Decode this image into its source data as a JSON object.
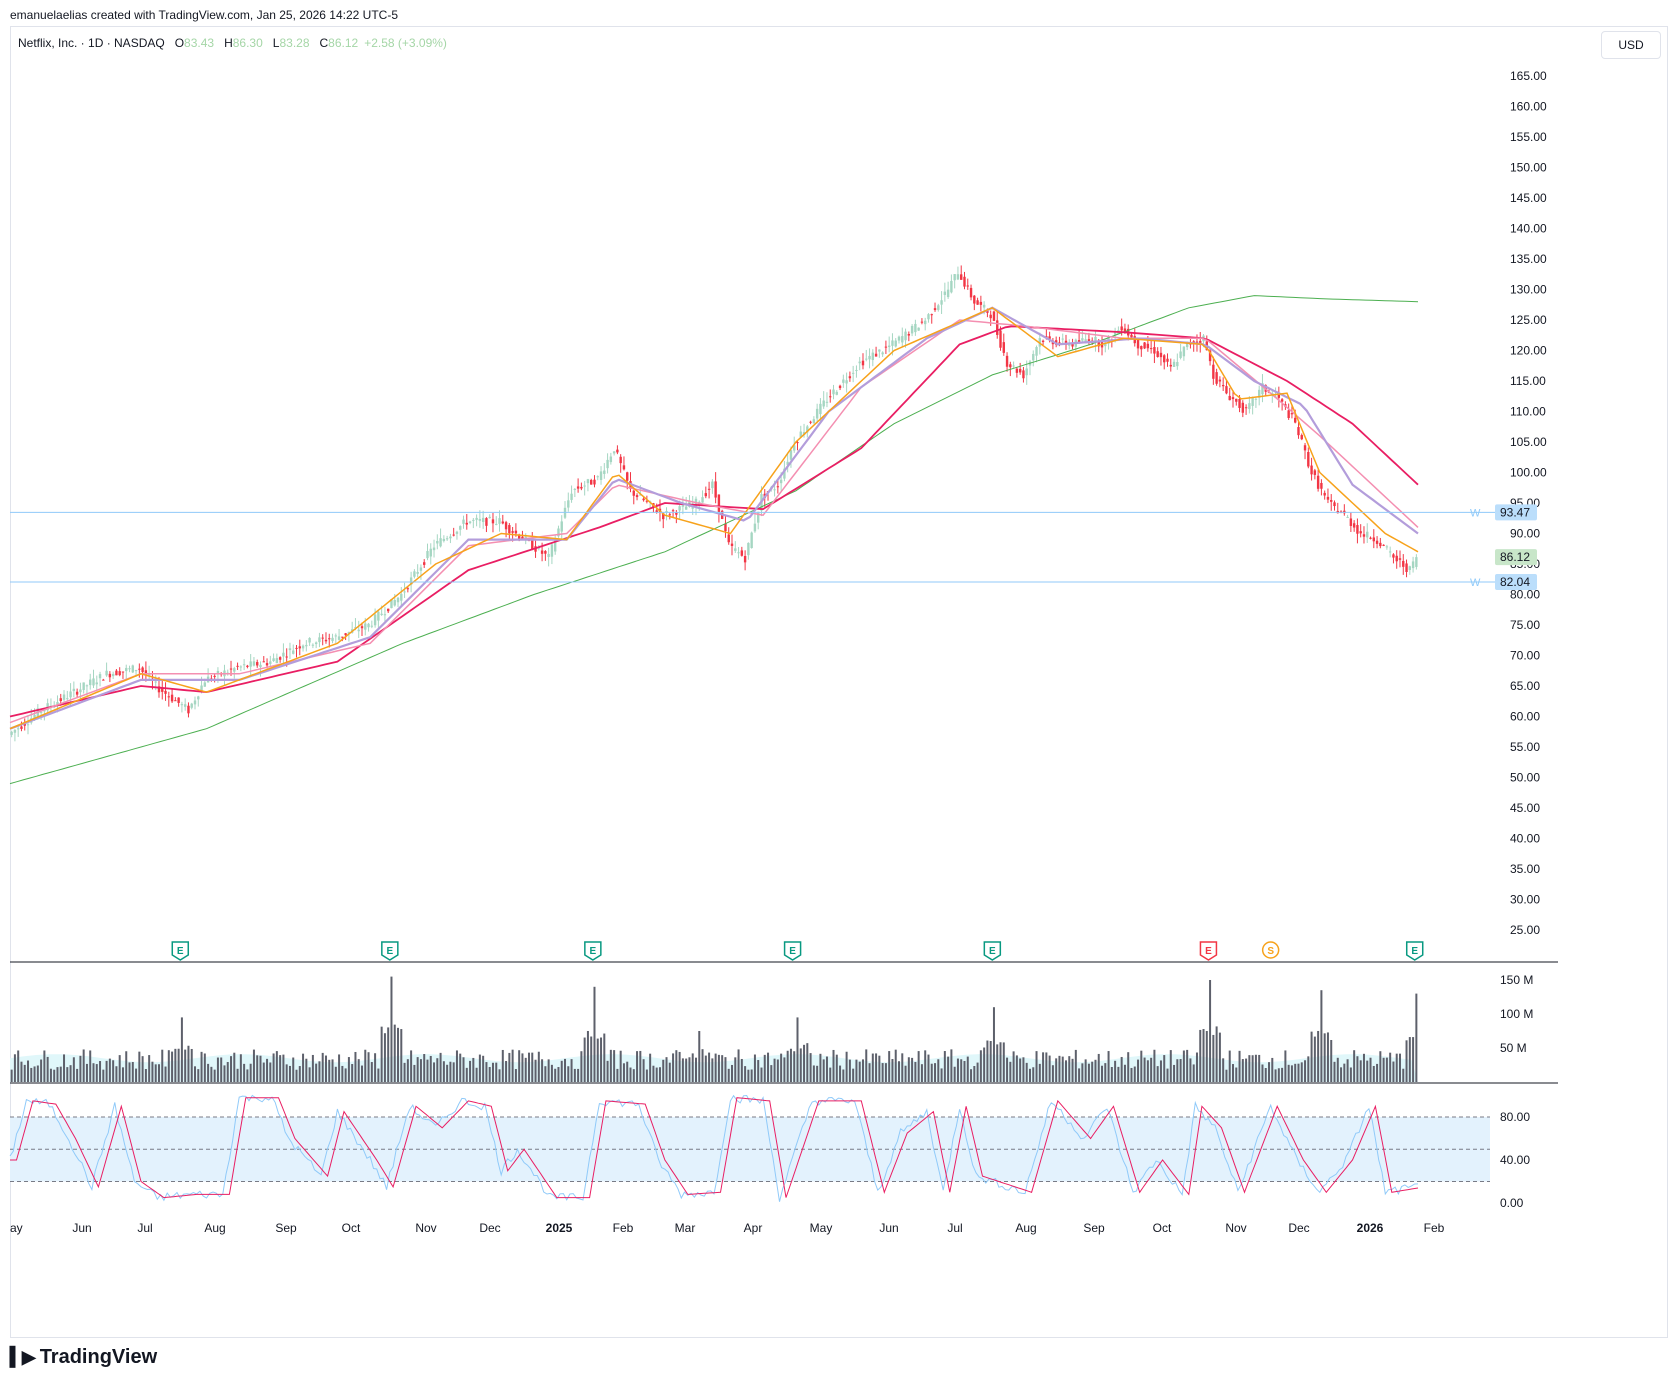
{
  "credit": "emanuelaelias created with TradingView.com, Jan 25, 2026 14:22 UTC-5",
  "legend": {
    "symbol": "Netflix, Inc. · 1D · NASDAQ",
    "open_label": "O",
    "open": "83.43",
    "high_label": "H",
    "high": "86.30",
    "low_label": "L",
    "low": "83.28",
    "close_label": "C",
    "close": "86.12",
    "change": "+2.58 (+3.09%)"
  },
  "currency": "USD",
  "brand": "TradingView",
  "colors": {
    "up": "#a5d6c2",
    "down": "#f23645",
    "ema_orange": "#f7a21b",
    "ema_purple": "#b39ddb",
    "ema_pink": "#f48fb1",
    "ema_red": "#e91e63",
    "sma200": "#4caf50",
    "hline": "#90caf9",
    "grid": "#ffffff",
    "stoch_k": "#90caf9",
    "stoch_d": "#e91e63",
    "band": "#e3f2fd"
  },
  "chart_data": [
    {
      "type": "candlestick",
      "price_axis": {
        "min": 25,
        "max": 165,
        "step": 5,
        "ticks": [
          "165.00",
          "160.00",
          "155.00",
          "150.00",
          "145.00",
          "140.00",
          "135.00",
          "130.00",
          "125.00",
          "120.00",
          "115.00",
          "110.00",
          "105.00",
          "100.00",
          "95.00",
          "90.00",
          "85.00",
          "80.00",
          "75.00",
          "70.00",
          "65.00",
          "60.00",
          "55.00",
          "50.00",
          "45.00",
          "40.00",
          "35.00",
          "30.00",
          "25.00"
        ]
      },
      "time_axis": [
        "ay",
        "Jun",
        "Jul",
        "Aug",
        "Sep",
        "Oct",
        "Nov",
        "Dec",
        "2025",
        "Feb",
        "Mar",
        "Apr",
        "May",
        "Jun",
        "Jul",
        "Aug",
        "Sep",
        "Oct",
        "Nov",
        "Dec",
        "2026",
        "Feb"
      ],
      "price_path": [
        [
          0,
          57
        ],
        [
          10,
          61
        ],
        [
          20,
          64
        ],
        [
          30,
          67
        ],
        [
          40,
          68
        ],
        [
          45,
          65
        ],
        [
          50,
          63
        ],
        [
          55,
          61
        ],
        [
          60,
          66
        ],
        [
          70,
          68
        ],
        [
          80,
          69
        ],
        [
          90,
          72
        ],
        [
          100,
          73
        ],
        [
          110,
          75
        ],
        [
          120,
          80
        ],
        [
          130,
          88
        ],
        [
          140,
          92
        ],
        [
          150,
          92
        ],
        [
          160,
          88
        ],
        [
          165,
          86
        ],
        [
          172,
          97
        ],
        [
          180,
          99
        ],
        [
          185,
          104
        ],
        [
          190,
          97
        ],
        [
          200,
          93
        ],
        [
          210,
          95
        ],
        [
          215,
          98
        ],
        [
          220,
          88
        ],
        [
          225,
          86
        ],
        [
          230,
          96
        ],
        [
          235,
          98
        ],
        [
          240,
          105
        ],
        [
          250,
          112
        ],
        [
          260,
          118
        ],
        [
          270,
          121
        ],
        [
          280,
          125
        ],
        [
          287,
          130
        ],
        [
          290,
          133
        ],
        [
          295,
          128
        ],
        [
          300,
          126
        ],
        [
          305,
          118
        ],
        [
          310,
          116
        ],
        [
          315,
          122
        ],
        [
          325,
          121
        ],
        [
          330,
          122
        ],
        [
          335,
          121
        ],
        [
          340,
          124
        ],
        [
          345,
          121
        ],
        [
          350,
          120
        ],
        [
          355,
          117
        ],
        [
          360,
          121
        ],
        [
          365,
          122
        ],
        [
          368,
          116
        ],
        [
          372,
          113
        ],
        [
          378,
          110
        ],
        [
          383,
          114
        ],
        [
          388,
          112
        ],
        [
          393,
          108
        ],
        [
          398,
          100
        ],
        [
          403,
          95
        ],
        [
          408,
          93
        ],
        [
          413,
          90
        ],
        [
          418,
          89
        ],
        [
          423,
          86
        ],
        [
          428,
          84
        ],
        [
          430,
          86.12
        ]
      ],
      "sma200_path": [
        [
          0,
          49
        ],
        [
          60,
          58
        ],
        [
          120,
          72
        ],
        [
          160,
          80
        ],
        [
          200,
          87
        ],
        [
          240,
          97
        ],
        [
          270,
          108
        ],
        [
          300,
          116
        ],
        [
          330,
          121
        ],
        [
          360,
          127
        ],
        [
          380,
          129
        ],
        [
          400,
          128.5
        ],
        [
          430,
          128
        ]
      ],
      "ema_fast_path": [
        [
          0,
          58
        ],
        [
          40,
          67
        ],
        [
          60,
          64
        ],
        [
          100,
          72
        ],
        [
          130,
          85
        ],
        [
          150,
          90
        ],
        [
          170,
          89
        ],
        [
          185,
          100
        ],
        [
          200,
          93
        ],
        [
          220,
          90
        ],
        [
          240,
          105
        ],
        [
          270,
          120
        ],
        [
          300,
          127
        ],
        [
          320,
          119
        ],
        [
          340,
          122
        ],
        [
          365,
          121
        ],
        [
          375,
          112
        ],
        [
          390,
          113
        ],
        [
          400,
          100
        ],
        [
          420,
          90
        ],
        [
          430,
          87
        ]
      ],
      "ema_mid_path": [
        [
          0,
          58
        ],
        [
          40,
          66
        ],
        [
          70,
          66
        ],
        [
          110,
          73
        ],
        [
          140,
          89
        ],
        [
          170,
          89
        ],
        [
          185,
          99
        ],
        [
          205,
          95
        ],
        [
          225,
          92
        ],
        [
          250,
          110
        ],
        [
          280,
          122
        ],
        [
          300,
          127
        ],
        [
          320,
          121
        ],
        [
          345,
          122
        ],
        [
          365,
          121
        ],
        [
          380,
          115
        ],
        [
          395,
          111
        ],
        [
          410,
          98
        ],
        [
          430,
          90
        ]
      ],
      "ema_slow_path": [
        [
          0,
          59
        ],
        [
          40,
          67
        ],
        [
          70,
          67
        ],
        [
          110,
          72
        ],
        [
          140,
          88
        ],
        [
          170,
          90
        ],
        [
          185,
          98
        ],
        [
          210,
          95
        ],
        [
          230,
          93
        ],
        [
          260,
          114
        ],
        [
          290,
          125
        ],
        [
          310,
          124
        ],
        [
          340,
          122
        ],
        [
          365,
          122
        ],
        [
          385,
          113
        ],
        [
          400,
          106
        ],
        [
          430,
          91
        ]
      ],
      "sma50_path": [
        [
          0,
          60
        ],
        [
          40,
          65
        ],
        [
          60,
          64
        ],
        [
          100,
          69
        ],
        [
          140,
          84
        ],
        [
          180,
          91
        ],
        [
          200,
          95
        ],
        [
          230,
          94
        ],
        [
          260,
          104
        ],
        [
          290,
          121
        ],
        [
          305,
          124
        ],
        [
          340,
          123
        ],
        [
          365,
          122
        ],
        [
          390,
          115
        ],
        [
          410,
          108
        ],
        [
          430,
          98
        ]
      ],
      "hlines": [
        {
          "value": 93.47,
          "label": "93.47",
          "tag": "W"
        },
        {
          "value": 82.04,
          "label": "82.04",
          "tag": "W"
        }
      ],
      "last_price": {
        "value": 86.12,
        "label": "86.12"
      },
      "earnings_markers": [
        {
          "x": 52,
          "label": "E",
          "color": "#089981"
        },
        {
          "x": 116,
          "label": "E",
          "color": "#089981"
        },
        {
          "x": 178,
          "label": "E",
          "color": "#089981"
        },
        {
          "x": 239,
          "label": "E",
          "color": "#089981"
        },
        {
          "x": 300,
          "label": "E",
          "color": "#089981"
        },
        {
          "x": 366,
          "label": "E",
          "color": "#f23645"
        },
        {
          "x": 385,
          "label": "S",
          "color": "#f7a21b"
        },
        {
          "x": 429,
          "label": "E",
          "color": "#089981"
        }
      ]
    },
    {
      "type": "bar",
      "name": "Volume",
      "axis_ticks": [
        "150 M",
        "100 M",
        "50 M"
      ],
      "axis_values": [
        150,
        100,
        50
      ],
      "spikes": [
        [
          52,
          95
        ],
        [
          116,
          155
        ],
        [
          178,
          140
        ],
        [
          210,
          75
        ],
        [
          240,
          95
        ],
        [
          300,
          110
        ],
        [
          366,
          150
        ],
        [
          400,
          135
        ],
        [
          429,
          130
        ]
      ],
      "baseline": 35
    },
    {
      "type": "line",
      "name": "Stochastic",
      "axis_ticks": [
        "80.00",
        "40.00",
        "0.00"
      ],
      "axis_values": [
        80,
        40,
        0
      ],
      "band": [
        20,
        80
      ],
      "midline": 50,
      "k_path": [
        [
          0,
          40
        ],
        [
          5,
          95
        ],
        [
          12,
          92
        ],
        [
          18,
          60
        ],
        [
          25,
          15
        ],
        [
          32,
          90
        ],
        [
          38,
          20
        ],
        [
          45,
          5
        ],
        [
          55,
          8
        ],
        [
          65,
          8
        ],
        [
          70,
          98
        ],
        [
          80,
          98
        ],
        [
          85,
          60
        ],
        [
          95,
          25
        ],
        [
          100,
          85
        ],
        [
          110,
          40
        ],
        [
          115,
          15
        ],
        [
          122,
          90
        ],
        [
          130,
          70
        ],
        [
          138,
          95
        ],
        [
          145,
          90
        ],
        [
          150,
          30
        ],
        [
          155,
          50
        ],
        [
          165,
          5
        ],
        [
          175,
          5
        ],
        [
          180,
          95
        ],
        [
          192,
          92
        ],
        [
          198,
          40
        ],
        [
          205,
          8
        ],
        [
          215,
          10
        ],
        [
          220,
          98
        ],
        [
          230,
          95
        ],
        [
          235,
          5
        ],
        [
          245,
          95
        ],
        [
          258,
          95
        ],
        [
          265,
          10
        ],
        [
          272,
          65
        ],
        [
          280,
          85
        ],
        [
          285,
          10
        ],
        [
          290,
          90
        ],
        [
          295,
          25
        ],
        [
          310,
          10
        ],
        [
          318,
          95
        ],
        [
          328,
          60
        ],
        [
          335,
          90
        ],
        [
          343,
          10
        ],
        [
          350,
          40
        ],
        [
          358,
          8
        ],
        [
          362,
          90
        ],
        [
          368,
          70
        ],
        [
          375,
          10
        ],
        [
          385,
          90
        ],
        [
          393,
          40
        ],
        [
          400,
          10
        ],
        [
          408,
          40
        ],
        [
          415,
          90
        ],
        [
          420,
          10
        ],
        [
          430,
          15
        ]
      ]
    }
  ]
}
